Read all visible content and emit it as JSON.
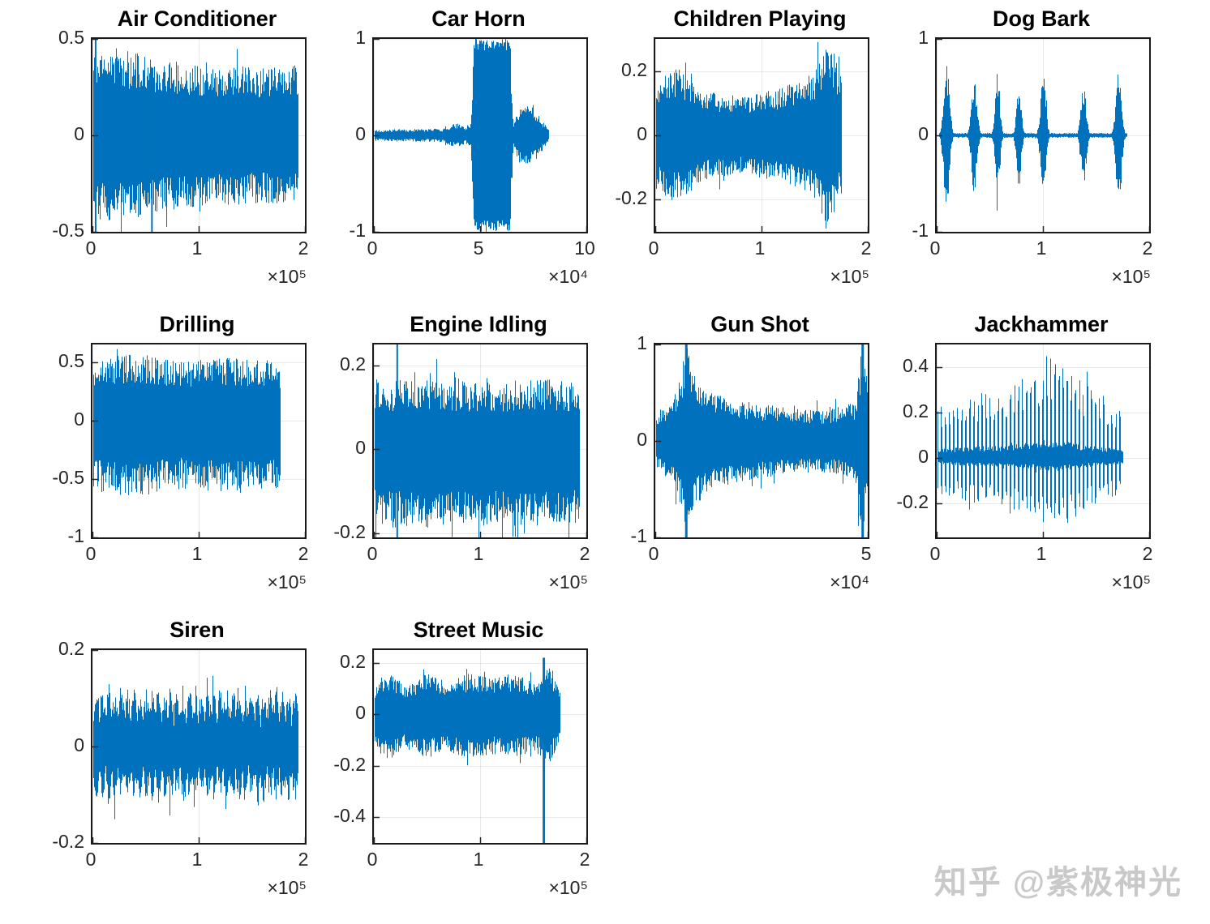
{
  "watermark": {
    "text": "知乎 @紫极神光",
    "color": "#c9c9c9"
  },
  "style": {
    "line_color": "#0072BD",
    "axis_color": "#262626",
    "grid_color": "rgba(38,38,38,0.10)",
    "grid": true
  },
  "chart_data": [
    {
      "type": "waveform",
      "title": "Air Conditioner",
      "xlim": [
        0,
        2
      ],
      "xticks": [
        {
          "v": 0,
          "label": "0"
        },
        {
          "v": 1,
          "label": "1"
        },
        {
          "v": 2,
          "label": "2"
        }
      ],
      "x_exponent": "×10⁵",
      "ylim": [
        -0.5,
        0.5
      ],
      "yticks": [
        {
          "v": 0.5,
          "label": "0.5"
        },
        {
          "v": 0,
          "label": "0"
        },
        {
          "v": -0.5,
          "label": "-0.5"
        }
      ],
      "signal": {
        "seed": 11,
        "extent": [
          0.005,
          1.93
        ],
        "envelope": [
          [
            0,
            0.43
          ],
          [
            0.2,
            0.46
          ],
          [
            0.6,
            0.4
          ],
          [
            1.1,
            0.37
          ],
          [
            1.6,
            0.35
          ],
          [
            1.93,
            0.36
          ]
        ],
        "spikes": [
          {
            "x": 0.03,
            "top": 0.5,
            "bot": -0.5,
            "w": 2
          },
          {
            "x": 0.56,
            "top": 0.35,
            "bot": -0.5,
            "w": 2
          }
        ]
      }
    },
    {
      "type": "waveform",
      "title": "Car Horn",
      "xlim": [
        0,
        10
      ],
      "xticks": [
        {
          "v": 0,
          "label": "0"
        },
        {
          "v": 5,
          "label": "5"
        },
        {
          "v": 10,
          "label": "10"
        }
      ],
      "x_exponent": "×10⁴",
      "ylim": [
        -1,
        1
      ],
      "yticks": [
        {
          "v": 1,
          "label": "1"
        },
        {
          "v": 0,
          "label": "0"
        },
        {
          "v": -1,
          "label": "-1"
        }
      ],
      "signal": {
        "seed": 22,
        "extent": [
          0.05,
          8.2
        ],
        "solid_thresh": 0.85,
        "envelope": [
          [
            0,
            0.06
          ],
          [
            3.2,
            0.07
          ],
          [
            3.9,
            0.13
          ],
          [
            4.3,
            0.09
          ],
          [
            4.55,
            0.12
          ],
          [
            4.7,
            1
          ],
          [
            6.4,
            1
          ],
          [
            6.55,
            0.1
          ],
          [
            6.8,
            0.28
          ],
          [
            7.3,
            0.33
          ],
          [
            7.8,
            0.2
          ],
          [
            8.2,
            0.06
          ]
        ]
      }
    },
    {
      "type": "waveform",
      "title": "Children Playing",
      "xlim": [
        0,
        2
      ],
      "xticks": [
        {
          "v": 0,
          "label": "0"
        },
        {
          "v": 1,
          "label": "1"
        },
        {
          "v": 2,
          "label": "2"
        }
      ],
      "x_exponent": "×10⁵",
      "ylim": [
        -0.3,
        0.3
      ],
      "yticks": [
        {
          "v": 0.2,
          "label": "0.2"
        },
        {
          "v": 0,
          "label": "0"
        },
        {
          "v": -0.2,
          "label": "-0.2"
        }
      ],
      "signal": {
        "seed": 33,
        "extent": [
          0.005,
          1.75
        ],
        "envelope": [
          [
            0,
            0.14
          ],
          [
            0.1,
            0.2
          ],
          [
            0.2,
            0.21
          ],
          [
            0.45,
            0.14
          ],
          [
            0.8,
            0.12
          ],
          [
            1.1,
            0.14
          ],
          [
            1.35,
            0.17
          ],
          [
            1.5,
            0.2
          ],
          [
            1.58,
            0.28
          ],
          [
            1.68,
            0.26
          ],
          [
            1.75,
            0.18
          ]
        ]
      }
    },
    {
      "type": "waveform",
      "title": "Dog Bark",
      "xlim": [
        0,
        2
      ],
      "xticks": [
        {
          "v": 0,
          "label": "0"
        },
        {
          "v": 1,
          "label": "1"
        },
        {
          "v": 2,
          "label": "2"
        }
      ],
      "x_exponent": "×10⁵",
      "ylim": [
        -1,
        1
      ],
      "yticks": [
        {
          "v": 1,
          "label": "1"
        },
        {
          "v": 0,
          "label": "0"
        },
        {
          "v": -1,
          "label": "-1"
        }
      ],
      "signal": {
        "seed": 44,
        "extent": [
          0.02,
          1.79
        ],
        "base": 0.025,
        "bursts": [
          {
            "c": 0.09,
            "w": 0.035,
            "a": 0.78
          },
          {
            "c": 0.35,
            "w": 0.035,
            "a": 0.62
          },
          {
            "c": 0.57,
            "w": 0.03,
            "a": 0.66
          },
          {
            "c": 0.77,
            "w": 0.03,
            "a": 0.55
          },
          {
            "c": 1.0,
            "w": 0.035,
            "a": 0.62
          },
          {
            "c": 1.38,
            "w": 0.035,
            "a": 0.52
          },
          {
            "c": 1.71,
            "w": 0.035,
            "a": 0.78
          }
        ]
      }
    },
    {
      "type": "waveform",
      "title": "Drilling",
      "xlim": [
        0,
        2
      ],
      "xticks": [
        {
          "v": 0,
          "label": "0"
        },
        {
          "v": 1,
          "label": "1"
        },
        {
          "v": 2,
          "label": "2"
        }
      ],
      "x_exponent": "×10⁵",
      "ylim": [
        -1,
        0.65
      ],
      "yticks": [
        {
          "v": 0.5,
          "label": "0.5"
        },
        {
          "v": 0,
          "label": "0"
        },
        {
          "v": -0.5,
          "label": "-0.5"
        },
        {
          "v": -1,
          "label": "-1"
        }
      ],
      "signal": {
        "seed": 55,
        "extent": [
          0.005,
          1.76
        ],
        "asym_neg": 1.15,
        "envelope": [
          [
            0,
            0.52
          ],
          [
            0.4,
            0.58
          ],
          [
            0.8,
            0.5
          ],
          [
            1.2,
            0.55
          ],
          [
            1.6,
            0.52
          ],
          [
            1.76,
            0.5
          ]
        ]
      }
    },
    {
      "type": "waveform",
      "title": "Engine Idling",
      "xlim": [
        0,
        2
      ],
      "xticks": [
        {
          "v": 0,
          "label": "0"
        },
        {
          "v": 1,
          "label": "1"
        },
        {
          "v": 2,
          "label": "2"
        }
      ],
      "x_exponent": "×10⁵",
      "ylim": [
        -0.21,
        0.25
      ],
      "yticks": [
        {
          "v": 0.2,
          "label": "0.2"
        },
        {
          "v": 0,
          "label": "0"
        },
        {
          "v": -0.2,
          "label": "-0.2"
        }
      ],
      "signal": {
        "seed": 66,
        "extent": [
          0.005,
          1.93
        ],
        "asym_neg": 1.1,
        "envelope": [
          [
            0,
            0.16
          ],
          [
            0.5,
            0.17
          ],
          [
            1,
            0.16
          ],
          [
            1.5,
            0.17
          ],
          [
            1.93,
            0.16
          ]
        ],
        "spikes": [
          {
            "x": 0.22,
            "top": 0.25,
            "bot": -0.21,
            "w": 2
          }
        ]
      }
    },
    {
      "type": "waveform",
      "title": "Gun Shot",
      "xlim": [
        0,
        5
      ],
      "xticks": [
        {
          "v": 0,
          "label": "0"
        },
        {
          "v": 5,
          "label": "5"
        }
      ],
      "x_exponent": "×10⁴",
      "ylim": [
        -1,
        1
      ],
      "yticks": [
        {
          "v": 1,
          "label": "1"
        },
        {
          "v": 0,
          "label": "0"
        },
        {
          "v": -1,
          "label": "-1"
        }
      ],
      "signal": {
        "seed": 77,
        "extent": [
          0.02,
          5
        ],
        "envelope": [
          [
            0,
            0.28
          ],
          [
            0.4,
            0.45
          ],
          [
            0.65,
            0.8
          ],
          [
            0.75,
            1
          ],
          [
            0.9,
            0.7
          ],
          [
            1.3,
            0.5
          ],
          [
            2,
            0.42
          ],
          [
            3,
            0.35
          ],
          [
            4,
            0.32
          ],
          [
            4.7,
            0.4
          ],
          [
            4.85,
            1
          ],
          [
            5,
            0.7
          ]
        ],
        "spikes": [
          {
            "x": 0.73,
            "top": 1,
            "bot": -1,
            "w": 3
          },
          {
            "x": 4.88,
            "top": 1,
            "bot": -1,
            "w": 3
          }
        ]
      }
    },
    {
      "type": "waveform",
      "title": "Jackhammer",
      "xlim": [
        0,
        2
      ],
      "xticks": [
        {
          "v": 0,
          "label": "0"
        },
        {
          "v": 1,
          "label": "1"
        },
        {
          "v": 2,
          "label": "2"
        }
      ],
      "x_exponent": "×10⁵",
      "ylim": [
        -0.35,
        0.5
      ],
      "yticks": [
        {
          "v": 0.4,
          "label": "0.4"
        },
        {
          "v": 0.2,
          "label": "0.2"
        },
        {
          "v": 0,
          "label": "0"
        },
        {
          "v": -0.2,
          "label": "-0.2"
        }
      ],
      "signal": {
        "seed": 88,
        "extent": [
          0.005,
          1.75
        ],
        "asym_neg": 0.7,
        "envelope": [
          [
            0,
            0.22
          ],
          [
            0.3,
            0.28
          ],
          [
            0.6,
            0.3
          ],
          [
            0.9,
            0.38
          ],
          [
            1.05,
            0.46
          ],
          [
            1.2,
            0.44
          ],
          [
            1.35,
            0.34
          ],
          [
            1.55,
            0.28
          ],
          [
            1.75,
            0.22
          ]
        ],
        "spike_train": {
          "period": 5,
          "duty": 0.4,
          "off_gain": 0.18
        }
      }
    },
    {
      "type": "waveform",
      "title": "Siren",
      "xlim": [
        0,
        2
      ],
      "xticks": [
        {
          "v": 0,
          "label": "0"
        },
        {
          "v": 1,
          "label": "1"
        },
        {
          "v": 2,
          "label": "2"
        }
      ],
      "x_exponent": "×10⁵",
      "ylim": [
        -0.2,
        0.2
      ],
      "yticks": [
        {
          "v": 0.2,
          "label": "0.2"
        },
        {
          "v": 0,
          "label": "0"
        },
        {
          "v": -0.2,
          "label": "-0.2"
        }
      ],
      "signal": {
        "seed": 99,
        "extent": [
          0.005,
          1.93
        ],
        "asym_neg": 0.9,
        "envelope": [
          [
            0,
            0.13
          ],
          [
            1.93,
            0.13
          ]
        ],
        "mod": {
          "freq": 33,
          "depth": 0.45
        }
      }
    },
    {
      "type": "waveform",
      "title": "Street Music",
      "xlim": [
        0,
        2
      ],
      "xticks": [
        {
          "v": 0,
          "label": "0"
        },
        {
          "v": 1,
          "label": "1"
        },
        {
          "v": 2,
          "label": "2"
        }
      ],
      "x_exponent": "×10⁵",
      "ylim": [
        -0.5,
        0.25
      ],
      "yticks": [
        {
          "v": 0.2,
          "label": "0.2"
        },
        {
          "v": 0,
          "label": "0"
        },
        {
          "v": -0.2,
          "label": "-0.2"
        },
        {
          "v": -0.4,
          "label": "-0.4"
        }
      ],
      "signal": {
        "seed": 110,
        "extent": [
          0.005,
          1.75
        ],
        "asym_neg": 1.1,
        "envelope": [
          [
            0,
            0.1
          ],
          [
            0.1,
            0.17
          ],
          [
            0.3,
            0.12
          ],
          [
            0.5,
            0.16
          ],
          [
            0.7,
            0.13
          ],
          [
            0.9,
            0.16
          ],
          [
            1.1,
            0.14
          ],
          [
            1.3,
            0.16
          ],
          [
            1.5,
            0.13
          ],
          [
            1.65,
            0.18
          ],
          [
            1.75,
            0.1
          ]
        ],
        "spikes": [
          {
            "x": 1.6,
            "top": 0.22,
            "bot": -0.5,
            "w": 3
          }
        ]
      }
    }
  ]
}
